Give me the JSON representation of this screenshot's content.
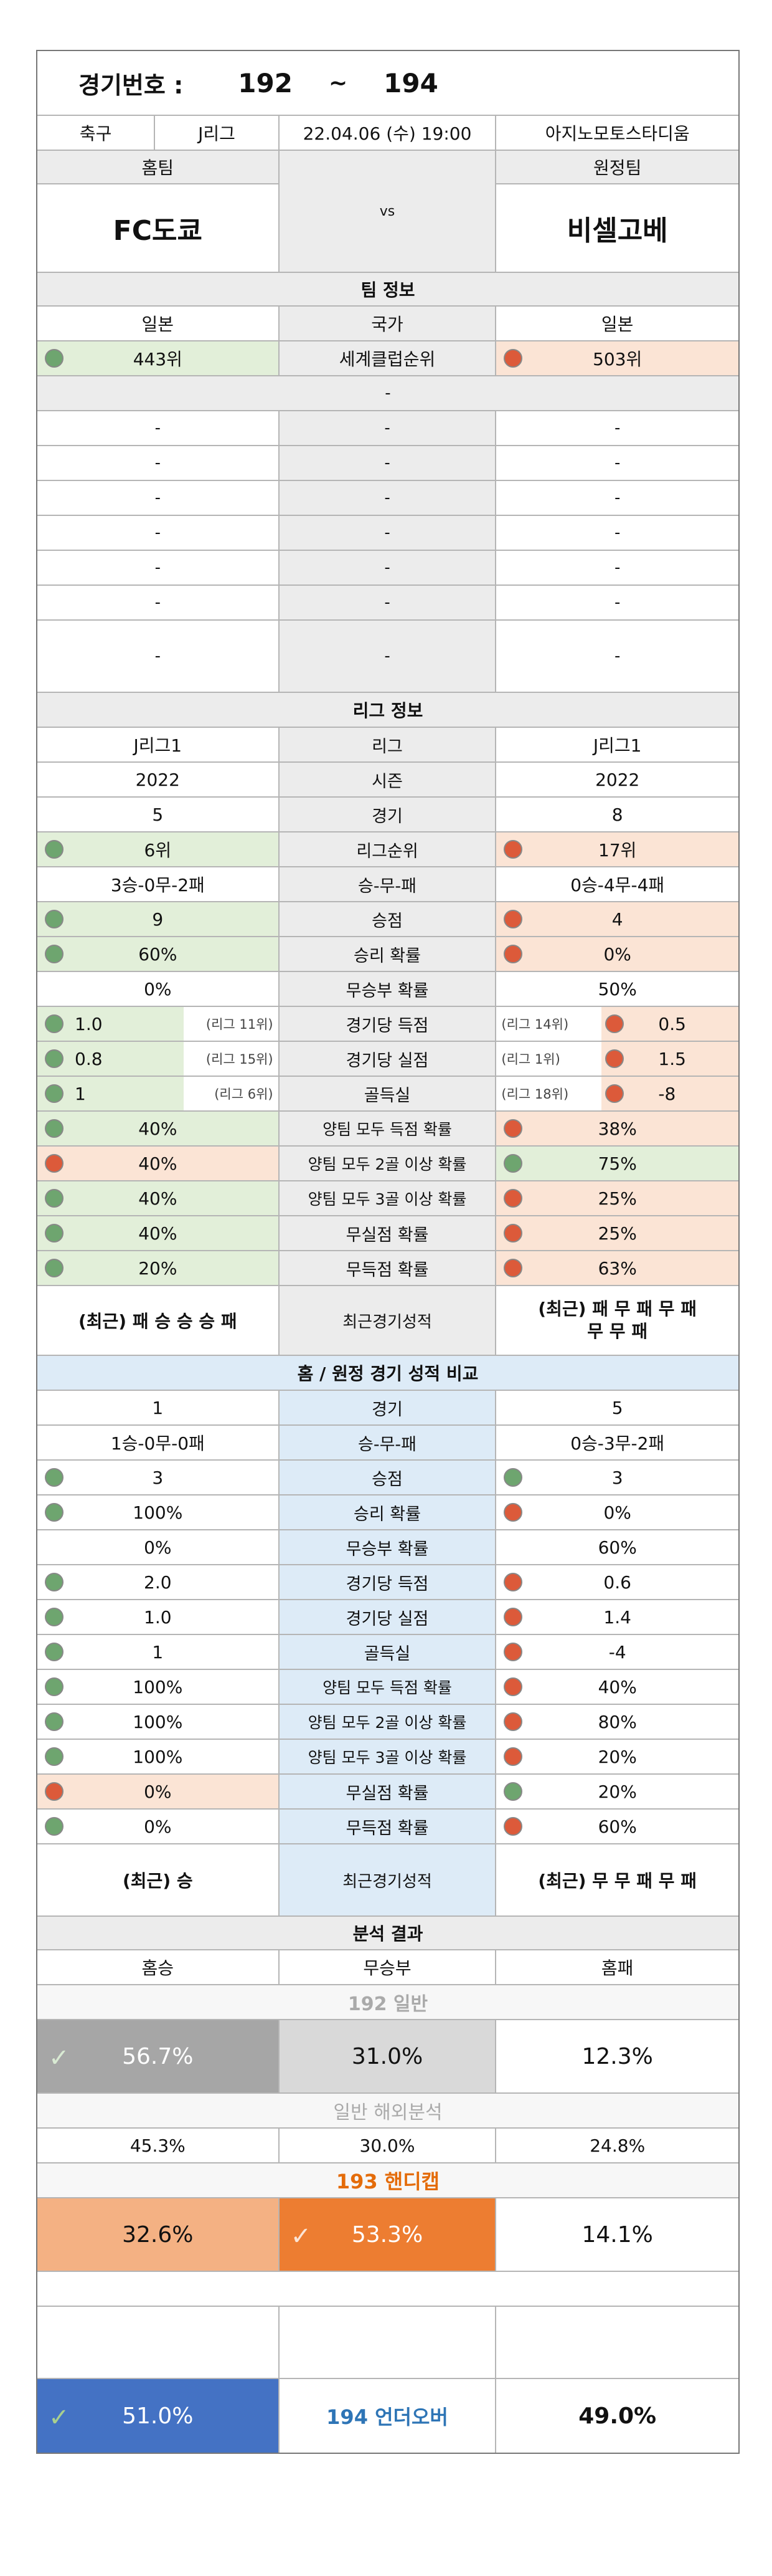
{
  "header": {
    "label": "경기번호 :",
    "from": "192",
    "sep": "~",
    "to": "194"
  },
  "match": {
    "sport": "축구",
    "league": "J리그",
    "datetime": "22.04.06 (수) 19:00",
    "venue": "아지노모토스타디움"
  },
  "teams": {
    "home_label": "홈팀",
    "away_label": "원정팀",
    "home": "FC도쿄",
    "vs": "vs",
    "away": "비셀고베"
  },
  "team_info": {
    "title": "팀 정보",
    "country": {
      "home": "일본",
      "label": "국가",
      "away": "일본"
    },
    "rank": {
      "home": "443위",
      "label": "세계클럽순위",
      "away": "503위"
    },
    "dash": "-"
  },
  "league_info": {
    "title": "리그 정보",
    "rows": [
      {
        "home": "J리그1",
        "label": "리그",
        "away": "J리그1"
      },
      {
        "home": "2022",
        "label": "시즌",
        "away": "2022"
      },
      {
        "home": "5",
        "label": "경기",
        "away": "8"
      },
      {
        "home": "6위",
        "label": "리그순위",
        "away": "17위"
      },
      {
        "home": "3승-0무-2패",
        "label": "승-무-패",
        "away": "0승-4무-4패"
      },
      {
        "home": "9",
        "label": "승점",
        "away": "4"
      },
      {
        "home": "60%",
        "label": "승리 확률",
        "away": "0%"
      },
      {
        "home": "0%",
        "label": "무승부 확률",
        "away": "50%"
      },
      {
        "home": "1.0",
        "home_note": "(리그 11위)",
        "label": "경기당 득점",
        "away": "0.5",
        "away_note": "(리그 14위)"
      },
      {
        "home": "0.8",
        "home_note": "(리그 15위)",
        "label": "경기당 실점",
        "away": "1.5",
        "away_note": "(리그 1위)"
      },
      {
        "home": "1",
        "home_note": "(리그 6위)",
        "label": "골득실",
        "away": "-8",
        "away_note": "(리그 18위)"
      },
      {
        "home": "40%",
        "label": "양팀 모두 득점 확률",
        "away": "38%"
      },
      {
        "home": "40%",
        "label": "양팀 모두 2골 이상 확률",
        "away": "75%"
      },
      {
        "home": "40%",
        "label": "양팀 모두 3골 이상 확률",
        "away": "25%"
      },
      {
        "home": "40%",
        "label": "무실점 확률",
        "away": "25%"
      },
      {
        "home": "20%",
        "label": "무득점 확률",
        "away": "63%"
      }
    ],
    "recent": {
      "home": "(최근) 패 승 승 승 패",
      "label": "최근경기성적",
      "away_line1": "(최근) 패 무 패 무 패",
      "away_line2": "무 무 패"
    }
  },
  "home_away": {
    "title": "홈 / 원정 경기 성적 비교",
    "rows": [
      {
        "home": "1",
        "label": "경기",
        "away": "5"
      },
      {
        "home": "1승-0무-0패",
        "label": "승-무-패",
        "away": "0승-3무-2패"
      },
      {
        "home": "3",
        "label": "승점",
        "away": "3"
      },
      {
        "home": "100%",
        "label": "승리 확률",
        "away": "0%"
      },
      {
        "home": "0%",
        "label": "무승부 확률",
        "away": "60%"
      },
      {
        "home": "2.0",
        "label": "경기당 득점",
        "away": "0.6"
      },
      {
        "home": "1.0",
        "label": "경기당 실점",
        "away": "1.4"
      },
      {
        "home": "1",
        "label": "골득실",
        "away": "-4"
      },
      {
        "home": "100%",
        "label": "양팀 모두 득점 확률",
        "away": "40%"
      },
      {
        "home": "100%",
        "label": "양팀 모두 2골 이상 확률",
        "away": "80%"
      },
      {
        "home": "100%",
        "label": "양팀 모두 3골 이상 확률",
        "away": "20%"
      },
      {
        "home": "0%",
        "label": "무실점 확률",
        "away": "20%"
      },
      {
        "home": "0%",
        "label": "무득점 확률",
        "away": "60%"
      }
    ],
    "recent": {
      "home": "(최근) 승",
      "label": "최근경기성적",
      "away": "(최근) 무 무 패 무 패"
    }
  },
  "analysis": {
    "title": "분석 결과",
    "home_win": "홈승",
    "draw": "무승부",
    "home_loss": "홈패",
    "general_title": "192 일반",
    "general": {
      "home": "56.7%",
      "draw": "31.0%",
      "loss": "12.3%"
    },
    "overseas_title": "일반 해외분석",
    "overseas": {
      "home": "45.3%",
      "draw": "30.0%",
      "loss": "24.8%"
    },
    "handicap_title": "193 핸디캡",
    "handicap": {
      "home": "32.6%",
      "draw": "53.3%",
      "loss": "14.1%"
    },
    "underover": {
      "under": "51.0%",
      "label": "194 언더오버",
      "over": "49.0%"
    }
  },
  "colors": {
    "green_dot": "#6ea56f",
    "red_dot": "#dc5a3a",
    "green_bg": "#e2efd9",
    "orange_bg": "#fbe4d5",
    "blue_bg": "#ddebf7",
    "handicap_orange": "#ed7d31",
    "under_blue": "#4472c4"
  },
  "icons": {
    "check": "check-icon",
    "dot_good": "green-dot-icon",
    "dot_bad": "red-dot-icon"
  }
}
